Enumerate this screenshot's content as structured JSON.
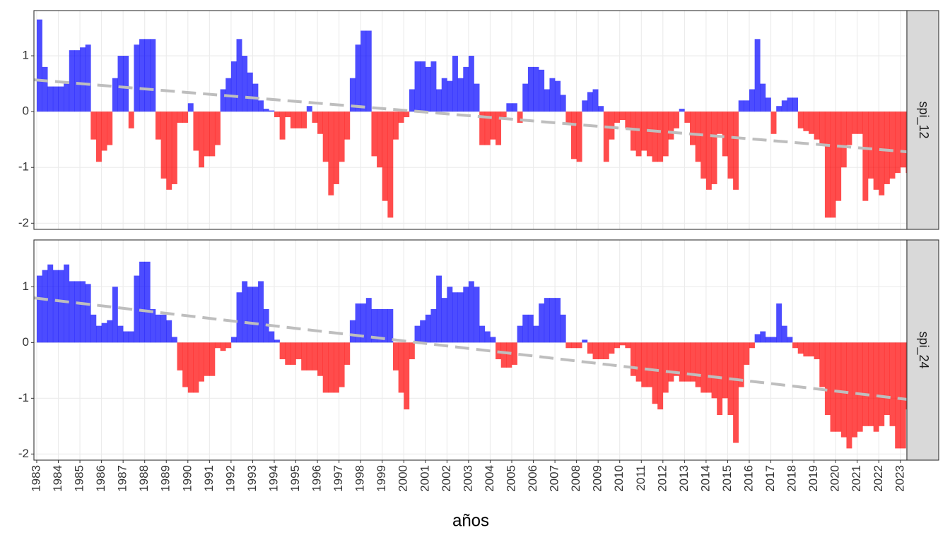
{
  "chart_data": {
    "type": "area",
    "x_label": "años",
    "xlim": [
      1982.87,
      2023.3
    ],
    "xticks": [
      1983,
      1984,
      1985,
      1986,
      1987,
      1988,
      1989,
      1990,
      1991,
      1992,
      1993,
      1994,
      1995,
      1996,
      1997,
      1998,
      1999,
      2000,
      2001,
      2002,
      2003,
      2004,
      2005,
      2006,
      2007,
      2008,
      2009,
      2010,
      2011,
      2012,
      2013,
      2014,
      2015,
      2016,
      2017,
      2018,
      2019,
      2020,
      2021,
      2022,
      2023
    ],
    "grid": true,
    "positive_color": "#0000ff",
    "negative_color": "#ff0000",
    "trend_color": "#bebebe",
    "x": [
      1983,
      1983.25,
      1983.5,
      1983.75,
      1984,
      1984.25,
      1984.5,
      1984.75,
      1985,
      1985.25,
      1985.5,
      1985.75,
      1986,
      1986.25,
      1986.5,
      1986.75,
      1987,
      1987.25,
      1987.5,
      1987.75,
      1988,
      1988.25,
      1988.5,
      1988.75,
      1989,
      1989.25,
      1989.5,
      1989.75,
      1990,
      1990.25,
      1990.5,
      1990.75,
      1991,
      1991.25,
      1991.5,
      1991.75,
      1992,
      1992.25,
      1992.5,
      1992.75,
      1993,
      1993.25,
      1993.5,
      1993.75,
      1994,
      1994.25,
      1994.5,
      1994.75,
      1995,
      1995.25,
      1995.5,
      1995.75,
      1996,
      1996.25,
      1996.5,
      1996.75,
      1997,
      1997.25,
      1997.5,
      1997.75,
      1998,
      1998.25,
      1998.5,
      1998.75,
      1999,
      1999.25,
      1999.5,
      1999.75,
      2000,
      2000.25,
      2000.5,
      2000.75,
      2001,
      2001.25,
      2001.5,
      2001.75,
      2002,
      2002.25,
      2002.5,
      2002.75,
      2003,
      2003.25,
      2003.5,
      2003.75,
      2004,
      2004.25,
      2004.5,
      2004.75,
      2005,
      2005.25,
      2005.5,
      2005.75,
      2006,
      2006.25,
      2006.5,
      2006.75,
      2007,
      2007.25,
      2007.5,
      2007.75,
      2008,
      2008.25,
      2008.5,
      2008.75,
      2009,
      2009.25,
      2009.5,
      2009.75,
      2010,
      2010.25,
      2010.5,
      2010.75,
      2011,
      2011.25,
      2011.5,
      2011.75,
      2012,
      2012.25,
      2012.5,
      2012.75,
      2013,
      2013.25,
      2013.5,
      2013.75,
      2014,
      2014.25,
      2014.5,
      2014.75,
      2015,
      2015.25,
      2015.5,
      2015.75,
      2016,
      2016.25,
      2016.5,
      2016.75,
      2017,
      2017.25,
      2017.5,
      2017.75,
      2018,
      2018.25,
      2018.5,
      2018.75,
      2019,
      2019.25,
      2019.5,
      2019.75,
      2020,
      2020.25,
      2020.5,
      2020.75,
      2021,
      2021.25,
      2021.5,
      2021.75,
      2022,
      2022.25,
      2022.5,
      2022.75,
      2023,
      2023.25
    ],
    "panels": [
      {
        "strip": "spi_12",
        "ylim": [
          -2.11,
          1.81
        ],
        "yticks": [
          -2,
          -1,
          0,
          1
        ],
        "trend": [
          0.57,
          -0.72
        ],
        "values": [
          1.65,
          0.8,
          0.45,
          0.45,
          0.45,
          0.5,
          1.1,
          1.1,
          1.15,
          1.2,
          -0.5,
          -0.9,
          -0.7,
          -0.6,
          0.6,
          1.0,
          1.0,
          -0.3,
          1.2,
          1.3,
          1.3,
          1.3,
          -0.5,
          -1.2,
          -1.4,
          -1.3,
          -0.2,
          -0.2,
          0.15,
          -0.7,
          -1.0,
          -0.8,
          -0.8,
          -0.6,
          0.4,
          0.6,
          0.9,
          1.3,
          1.0,
          0.7,
          0.5,
          0.2,
          0.05,
          0.02,
          -0.1,
          -0.5,
          -0.1,
          -0.3,
          -0.3,
          -0.3,
          0.1,
          -0.2,
          -0.4,
          -0.9,
          -1.5,
          -1.3,
          -0.9,
          -0.5,
          0.6,
          1.2,
          1.45,
          1.45,
          -0.8,
          -1.0,
          -1.6,
          -1.9,
          -0.5,
          -0.2,
          -0.1,
          0.4,
          0.9,
          0.9,
          0.8,
          0.9,
          0.4,
          0.6,
          0.55,
          1.0,
          0.6,
          0.8,
          1.0,
          0.5,
          -0.6,
          -0.6,
          -0.5,
          -0.6,
          -0.1,
          0.15,
          0.15,
          -0.2,
          0.5,
          0.8,
          0.8,
          0.75,
          0.4,
          0.6,
          0.55,
          0.3,
          -0.2,
          -0.85,
          -0.9,
          0.2,
          0.35,
          0.4,
          0.1,
          -0.9,
          -0.5,
          -0.2,
          -0.15,
          -0.3,
          -0.7,
          -0.8,
          -0.7,
          -0.8,
          -0.9,
          -0.9,
          -0.8,
          -0.5,
          -0.3,
          0.05,
          -0.2,
          -0.6,
          -0.9,
          -1.2,
          -1.4,
          -1.3,
          -0.4,
          -0.8,
          -1.2,
          -1.4,
          0.2,
          0.2,
          0.4,
          1.3,
          0.5,
          0.25,
          -0.4,
          0.1,
          0.2,
          0.25,
          0.25,
          -0.3,
          -0.35,
          -0.4,
          -0.5,
          -0.6,
          -1.9,
          -1.9,
          -1.6,
          -1.0,
          -0.6,
          -0.4,
          -0.4,
          -1.6,
          -1.2,
          -1.4,
          -1.5,
          -1.3,
          -1.2,
          -1.1,
          -1.0,
          -1.1
        ]
      },
      {
        "strip": "spi_24",
        "ylim": [
          -2.11,
          1.84
        ],
        "yticks": [
          -2,
          -1,
          0,
          1
        ],
        "trend": [
          0.8,
          -1.02
        ],
        "values": [
          1.2,
          1.3,
          1.4,
          1.3,
          1.3,
          1.4,
          1.1,
          1.1,
          1.1,
          1.05,
          0.5,
          0.3,
          0.35,
          0.4,
          1.0,
          0.3,
          0.2,
          0.2,
          1.2,
          1.45,
          1.45,
          0.6,
          0.5,
          0.5,
          0.4,
          0.1,
          -0.5,
          -0.8,
          -0.9,
          -0.9,
          -0.7,
          -0.6,
          -0.6,
          -0.1,
          -0.15,
          -0.1,
          0.1,
          0.9,
          1.1,
          1.0,
          1.0,
          1.1,
          0.6,
          0.2,
          0.05,
          -0.3,
          -0.4,
          -0.4,
          -0.3,
          -0.5,
          -0.5,
          -0.5,
          -0.6,
          -0.9,
          -0.9,
          -0.9,
          -0.8,
          -0.4,
          0.4,
          0.7,
          0.7,
          0.8,
          0.6,
          0.6,
          0.6,
          0.6,
          -0.5,
          -0.9,
          -1.2,
          -0.3,
          0.3,
          0.4,
          0.5,
          0.6,
          1.2,
          0.8,
          1.0,
          0.9,
          0.9,
          1.0,
          1.1,
          1.0,
          0.3,
          0.2,
          0.1,
          -0.3,
          -0.45,
          -0.45,
          -0.4,
          0.3,
          0.5,
          0.5,
          0.3,
          0.7,
          0.8,
          0.8,
          0.8,
          0.5,
          -0.1,
          -0.1,
          -0.1,
          0.05,
          -0.2,
          -0.3,
          -0.3,
          -0.3,
          -0.2,
          -0.1,
          -0.05,
          -0.1,
          -0.6,
          -0.7,
          -0.8,
          -0.8,
          -1.1,
          -1.2,
          -0.9,
          -0.7,
          -0.6,
          -0.7,
          -0.7,
          -0.7,
          -0.8,
          -0.9,
          -0.9,
          -1.0,
          -1.3,
          -1.0,
          -1.3,
          -1.8,
          -0.8,
          -0.4,
          -0.1,
          0.15,
          0.2,
          0.1,
          0.1,
          0.7,
          0.3,
          0.1,
          -0.1,
          -0.2,
          -0.25,
          -0.25,
          -0.3,
          -0.8,
          -1.3,
          -1.6,
          -1.6,
          -1.7,
          -1.9,
          -1.7,
          -1.6,
          -1.5,
          -1.5,
          -1.6,
          -1.5,
          -1.3,
          -1.5,
          -1.9,
          -1.9,
          -1.2
        ]
      }
    ]
  }
}
